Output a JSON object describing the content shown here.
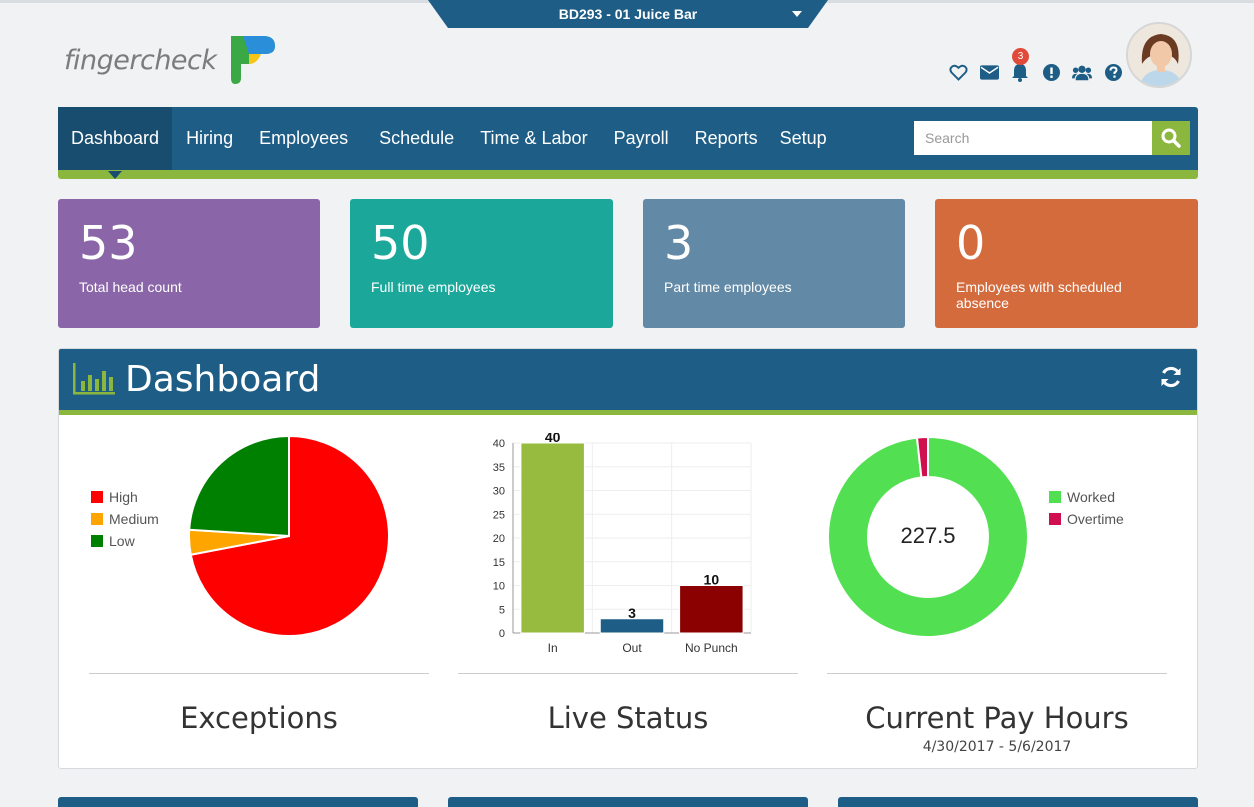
{
  "company_selector": {
    "label": "BD293 - 01 Juice Bar"
  },
  "brand": {
    "name": "fingercheck"
  },
  "notifications": {
    "count": "3"
  },
  "nav": {
    "items": [
      {
        "label": "Dashboard",
        "active": true
      },
      {
        "label": "Hiring"
      },
      {
        "label": "Employees"
      },
      {
        "label": "Schedule"
      },
      {
        "label": "Time & Labor"
      },
      {
        "label": "Payroll"
      },
      {
        "label": "Reports"
      },
      {
        "label": "Setup"
      }
    ],
    "search_placeholder": "Search"
  },
  "stats": [
    {
      "value": "53",
      "label": "Total head count",
      "color": "#8a66a8"
    },
    {
      "value": "50",
      "label": "Full time employees",
      "color": "#1ba89a"
    },
    {
      "value": "3",
      "label": "Part time employees",
      "color": "#6289a6"
    },
    {
      "value": "0",
      "label": "Employees with scheduled absence",
      "color": "#d36b3d"
    }
  ],
  "dashboard": {
    "title": "Dashboard",
    "exceptions": {
      "title": "Exceptions"
    },
    "live_status": {
      "title": "Live Status"
    },
    "pay_hours": {
      "title": "Current Pay Hours",
      "period": "4/30/2017 - 5/6/2017",
      "center_value": "227.5"
    }
  },
  "chart_data": [
    {
      "type": "pie",
      "labels": [
        "High",
        "Medium",
        "Low"
      ],
      "values": [
        72,
        4,
        24
      ],
      "colors": [
        "#ff0000",
        "#ffa500",
        "#008000"
      ],
      "legend_position": "left"
    },
    {
      "type": "bar",
      "categories": [
        "In",
        "Out",
        "No Punch"
      ],
      "values": [
        40,
        3,
        10
      ],
      "colors": [
        "#96bb3f",
        "#1e5d86",
        "#8b0000"
      ],
      "ylim": [
        0,
        40
      ],
      "yticks": [
        0,
        5,
        10,
        15,
        20,
        25,
        30,
        35,
        40
      ],
      "grid": true,
      "data_labels": true
    },
    {
      "type": "pie",
      "subtype": "donut",
      "labels": [
        "Worked",
        "Overtime"
      ],
      "values": [
        223.5,
        4
      ],
      "colors": [
        "#52e052",
        "#d0104e"
      ],
      "legend_position": "right"
    }
  ]
}
